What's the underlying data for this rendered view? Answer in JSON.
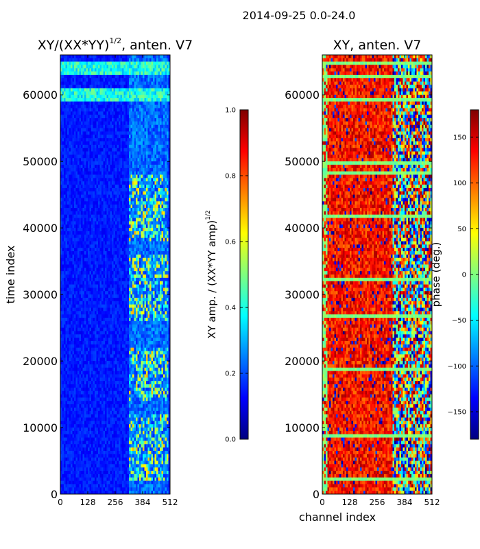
{
  "figure": {
    "suptitle": "2014-09-25 0.0-24.0"
  },
  "colormap": [
    "#00007f",
    "#0000ff",
    "#0080ff",
    "#00ffff",
    "#7fff7f",
    "#ffff00",
    "#ff8000",
    "#ff0000",
    "#7f0000"
  ],
  "chart_data": [
    {
      "type": "heatmap",
      "title": "XY/(XX*YY)^{1/2}, anten. V7",
      "title_main": "XY/(XX*YY)",
      "title_exp": "1/2",
      "title_tail": ", anten. V7",
      "xlabel": "",
      "ylabel": "time index",
      "xlim": [
        0,
        512
      ],
      "ylim": [
        0,
        66000
      ],
      "xticks": [
        "0",
        "128",
        "256",
        "384",
        "512"
      ],
      "xtick_values": [
        0,
        128,
        256,
        384,
        512
      ],
      "yticks": [
        "0",
        "10000",
        "20000",
        "30000",
        "40000",
        "50000",
        "60000"
      ],
      "ytick_values": [
        0,
        10000,
        20000,
        30000,
        40000,
        50000,
        60000
      ],
      "dominant_value": 0.15,
      "bright_bands_time": [
        [
          58800,
          61000
        ],
        [
          62800,
          65000
        ]
      ],
      "active_channel_range": [
        320,
        500
      ],
      "active_time_ranges": [
        [
          2000,
          12000
        ],
        [
          14000,
          22000
        ],
        [
          26000,
          36000
        ],
        [
          38000,
          48000
        ]
      ],
      "active_value_range": [
        0.3,
        0.7
      ],
      "colorbar": {
        "label": "XY amp. / (XX*YY amp)^{1/2}",
        "label_main": "XY amp. / (XX*YY amp)",
        "label_exp": "1/2",
        "range": [
          0.0,
          1.0
        ],
        "ticks": [
          "0.0",
          "0.2",
          "0.4",
          "0.6",
          "0.8",
          "1.0"
        ],
        "tick_values": [
          0.0,
          0.2,
          0.4,
          0.6,
          0.8,
          1.0
        ]
      }
    },
    {
      "type": "heatmap",
      "title": "XY, anten. V7",
      "xlabel": "channel index",
      "ylabel": "",
      "xlim": [
        0,
        512
      ],
      "ylim": [
        0,
        66000
      ],
      "xticks": [
        "0",
        "128",
        "256",
        "384",
        "512"
      ],
      "xtick_values": [
        0,
        128,
        256,
        384,
        512
      ],
      "yticks": [
        "0",
        "10000",
        "20000",
        "30000",
        "40000",
        "50000",
        "60000"
      ],
      "ytick_values": [
        0,
        10000,
        20000,
        30000,
        40000,
        50000,
        60000
      ],
      "dominant_value": 130,
      "noisy_channel_range": [
        330,
        512
      ],
      "flagged_value": 0,
      "flagged_time_rows": [
        2500,
        8800,
        18800,
        27200,
        32300,
        41800,
        48600,
        50100,
        59600,
        63000,
        65200
      ],
      "colorbar": {
        "label": "phase (deg.)",
        "range": [
          -180,
          180
        ],
        "ticks": [
          "150",
          "100",
          "50",
          "0",
          "−50",
          "−100",
          "−150"
        ],
        "tick_values": [
          150,
          100,
          50,
          0,
          -50,
          -100,
          -150
        ]
      }
    }
  ]
}
